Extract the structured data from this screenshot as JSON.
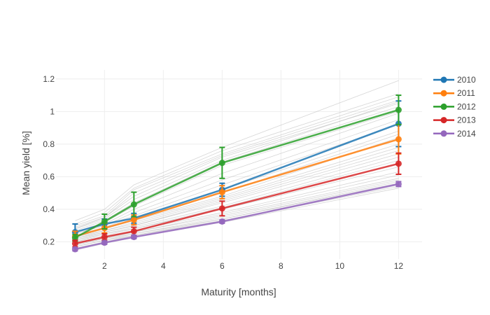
{
  "chart_data": {
    "type": "line",
    "title": "",
    "xlabel": "Maturity [months]",
    "ylabel": "Mean yield [%]",
    "xlim": [
      0.35,
      12.8
    ],
    "ylim": [
      0.095,
      1.255
    ],
    "xticks": [
      2,
      4,
      6,
      8,
      10,
      12
    ],
    "yticks": [
      0.2,
      0.4,
      0.6,
      0.8,
      1,
      1.2
    ],
    "xtick_labels": [
      "2",
      "4",
      "6",
      "8",
      "10",
      "12"
    ],
    "ytick_labels": [
      "0.2",
      "0.4",
      "0.6",
      "0.8",
      "1",
      "1.2"
    ],
    "grid": true,
    "legend_position": "top-right",
    "x": [
      1,
      2,
      3,
      6,
      12
    ],
    "series": [
      {
        "name": "2010",
        "color": "#1f77b4",
        "values": [
          0.26,
          0.31,
          0.345,
          0.52,
          0.925
        ],
        "errors": [
          0.05,
          0.03,
          0.03,
          0.04,
          0.14
        ]
      },
      {
        "name": "2011",
        "color": "#ff7f0e",
        "values": [
          0.235,
          0.285,
          0.335,
          0.505,
          0.83
        ],
        "errors": [
          0.03,
          0.03,
          0.03,
          0.04,
          0.09
        ]
      },
      {
        "name": "2012",
        "color": "#2ca02c",
        "values": [
          0.225,
          0.325,
          0.43,
          0.685,
          1.01
        ],
        "errors": [
          0.02,
          0.045,
          0.075,
          0.095,
          0.09
        ]
      },
      {
        "name": "2013",
        "color": "#d62728",
        "values": [
          0.19,
          0.23,
          0.265,
          0.405,
          0.68
        ],
        "errors": [
          0.02,
          0.02,
          0.025,
          0.045,
          0.065
        ]
      },
      {
        "name": "2014",
        "color": "#9467bd",
        "values": [
          0.155,
          0.195,
          0.23,
          0.325,
          0.555
        ],
        "errors": [
          0.01,
          0.01,
          0.01,
          0.01,
          0.015
        ]
      }
    ],
    "background_series_color": "#bbbbbb",
    "background_series": [
      [
        0.33,
        0.4,
        0.55,
        0.78,
        1.19
      ],
      [
        0.31,
        0.38,
        0.53,
        0.76,
        1.11
      ],
      [
        0.3,
        0.36,
        0.52,
        0.74,
        1.09
      ],
      [
        0.29,
        0.35,
        0.5,
        0.73,
        1.07
      ],
      [
        0.28,
        0.35,
        0.48,
        0.72,
        1.05
      ],
      [
        0.28,
        0.34,
        0.46,
        0.7,
        1.06
      ],
      [
        0.27,
        0.33,
        0.44,
        0.69,
        1.03
      ],
      [
        0.26,
        0.32,
        0.42,
        0.67,
        1.0
      ],
      [
        0.26,
        0.31,
        0.4,
        0.62,
        0.99
      ],
      [
        0.25,
        0.3,
        0.38,
        0.58,
        0.95
      ],
      [
        0.25,
        0.3,
        0.36,
        0.55,
        0.92
      ],
      [
        0.24,
        0.29,
        0.35,
        0.52,
        0.88
      ],
      [
        0.24,
        0.28,
        0.34,
        0.5,
        0.86
      ],
      [
        0.23,
        0.28,
        0.33,
        0.48,
        0.84
      ],
      [
        0.23,
        0.27,
        0.32,
        0.47,
        0.8
      ],
      [
        0.22,
        0.27,
        0.31,
        0.46,
        0.78
      ],
      [
        0.22,
        0.26,
        0.3,
        0.45,
        0.76
      ],
      [
        0.21,
        0.26,
        0.3,
        0.44,
        0.74
      ],
      [
        0.21,
        0.25,
        0.29,
        0.42,
        0.72
      ],
      [
        0.2,
        0.25,
        0.28,
        0.41,
        0.7
      ],
      [
        0.2,
        0.24,
        0.28,
        0.4,
        0.66
      ],
      [
        0.19,
        0.23,
        0.27,
        0.38,
        0.63
      ],
      [
        0.19,
        0.23,
        0.26,
        0.37,
        0.61
      ],
      [
        0.18,
        0.22,
        0.26,
        0.36,
        0.59
      ],
      [
        0.18,
        0.22,
        0.25,
        0.35,
        0.58
      ],
      [
        0.17,
        0.21,
        0.25,
        0.34,
        0.57
      ],
      [
        0.17,
        0.21,
        0.24,
        0.34,
        0.56
      ],
      [
        0.16,
        0.2,
        0.24,
        0.33,
        0.55
      ],
      [
        0.16,
        0.2,
        0.23,
        0.33,
        0.54
      ],
      [
        0.15,
        0.19,
        0.23,
        0.32,
        0.53
      ]
    ]
  }
}
